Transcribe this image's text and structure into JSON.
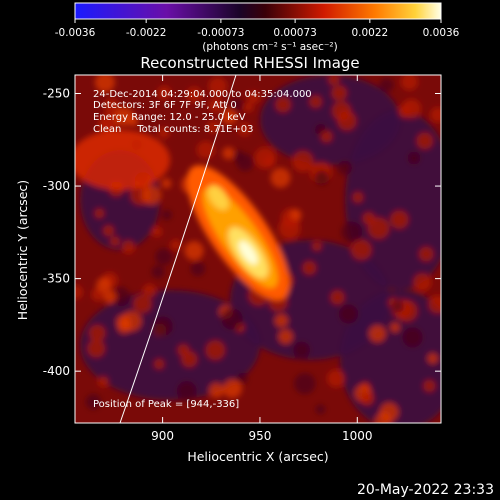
{
  "colorbar": {
    "ticks": [
      "-0.0036",
      "-0.0022",
      "-0.00073",
      "0.00073",
      "0.0022",
      "0.0036"
    ],
    "tick_values": [
      -0.0036,
      -0.0022,
      -0.00073,
      0.00073,
      0.0022,
      0.0036
    ],
    "range": [
      -0.0036,
      0.0036
    ],
    "units": "(photons cm⁻² s⁻¹ asec⁻²)"
  },
  "chart_data": {
    "type": "heatmap",
    "title": "Reconstructed RHESSI Image",
    "xlabel": "Heliocentric X (arcsec)",
    "ylabel": "Heliocentric Y (arcsec)",
    "xlim": [
      855,
      1043
    ],
    "ylim": [
      -428,
      -240
    ],
    "x_ticks": [
      900,
      950,
      1000
    ],
    "y_ticks": [
      -250,
      -300,
      -350,
      -400
    ],
    "colormap": "hot/heat with blue-purple negative end",
    "peak": [
      944,
      -336
    ],
    "annotations": {
      "time_range": "24-Dec-2014 04:29:04.000 to 04:35:04.000",
      "detectors": "Detectors: 3F 6F 7F 9F, Att 0",
      "energy": "Energy Range: 12.0 - 25.0 keV",
      "clean": "Clean     Total counts: 8.71E+03",
      "peak_label": "Position of Peak = [944,-336]"
    }
  },
  "footer": {
    "timestamp": "20-May-2022 23:33"
  }
}
